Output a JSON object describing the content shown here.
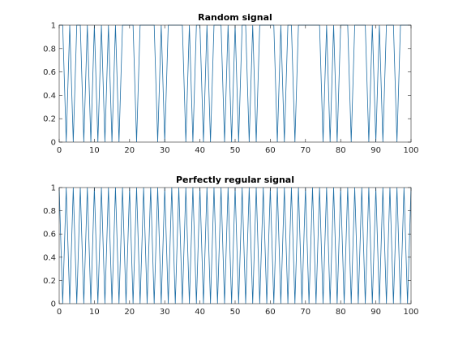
{
  "figure": {
    "background": "#ffffff",
    "axis_color": "#262626",
    "series_color": "#1f6fa6"
  },
  "chart_data": [
    {
      "type": "line",
      "title": "Random signal",
      "xlabel": "",
      "ylabel": "",
      "xlim": [
        0,
        100
      ],
      "ylim": [
        0,
        1
      ],
      "xticks": [
        0,
        10,
        20,
        30,
        40,
        50,
        60,
        70,
        80,
        90,
        100
      ],
      "yticks": [
        0,
        0.2,
        0.4,
        0.6,
        0.8,
        1
      ],
      "grid": false,
      "series": [
        {
          "color": "#1f6fa6",
          "x": [
            0,
            1,
            2,
            3,
            4,
            5,
            6,
            7,
            8,
            9,
            10,
            11,
            12,
            13,
            14,
            15,
            16,
            17,
            18,
            19,
            20,
            21,
            22,
            23,
            24,
            25,
            26,
            27,
            28,
            29,
            30,
            31,
            32,
            33,
            34,
            35,
            36,
            37,
            38,
            39,
            40,
            41,
            42,
            43,
            44,
            45,
            46,
            47,
            48,
            49,
            50,
            51,
            52,
            53,
            54,
            55,
            56,
            57,
            58,
            59,
            60,
            61,
            62,
            63,
            64,
            65,
            66,
            67,
            68,
            69,
            70,
            71,
            72,
            73,
            74,
            75,
            76,
            77,
            78,
            79,
            80,
            81,
            82,
            83,
            84,
            85,
            86,
            87,
            88,
            89,
            90,
            91,
            92,
            93,
            94,
            95,
            96,
            97,
            98,
            99,
            100
          ],
          "y": [
            1,
            1,
            0,
            1,
            0,
            1,
            1,
            0,
            1,
            0,
            1,
            0,
            1,
            0,
            1,
            0,
            1,
            0,
            1,
            1,
            1,
            1,
            0,
            1,
            1,
            1,
            1,
            1,
            0,
            1,
            0,
            1,
            1,
            1,
            1,
            1,
            0,
            1,
            0,
            1,
            1,
            0,
            1,
            0,
            1,
            1,
            1,
            0,
            1,
            0,
            1,
            0,
            1,
            1,
            0,
            1,
            0,
            1,
            1,
            1,
            1,
            1,
            0,
            1,
            0,
            1,
            1,
            0,
            1,
            1,
            1,
            1,
            1,
            1,
            1,
            0,
            1,
            0,
            1,
            0,
            1,
            1,
            1,
            0,
            1,
            1,
            1,
            1,
            0,
            1,
            0,
            1,
            0,
            1,
            1,
            1,
            0,
            1,
            1,
            1,
            1
          ]
        }
      ]
    },
    {
      "type": "line",
      "title": "Perfectly regular signal",
      "xlabel": "",
      "ylabel": "",
      "xlim": [
        0,
        100
      ],
      "ylim": [
        0,
        1
      ],
      "xticks": [
        0,
        10,
        20,
        30,
        40,
        50,
        60,
        70,
        80,
        90,
        100
      ],
      "yticks": [
        0,
        0.2,
        0.4,
        0.6,
        0.8,
        1
      ],
      "grid": false,
      "series": [
        {
          "color": "#1f6fa6",
          "x": [
            0,
            1,
            2,
            3,
            4,
            5,
            6,
            7,
            8,
            9,
            10,
            11,
            12,
            13,
            14,
            15,
            16,
            17,
            18,
            19,
            20,
            21,
            22,
            23,
            24,
            25,
            26,
            27,
            28,
            29,
            30,
            31,
            32,
            33,
            34,
            35,
            36,
            37,
            38,
            39,
            40,
            41,
            42,
            43,
            44,
            45,
            46,
            47,
            48,
            49,
            50,
            51,
            52,
            53,
            54,
            55,
            56,
            57,
            58,
            59,
            60,
            61,
            62,
            63,
            64,
            65,
            66,
            67,
            68,
            69,
            70,
            71,
            72,
            73,
            74,
            75,
            76,
            77,
            78,
            79,
            80,
            81,
            82,
            83,
            84,
            85,
            86,
            87,
            88,
            89,
            90,
            91,
            92,
            93,
            94,
            95,
            96,
            97,
            98,
            99,
            100
          ],
          "y": [
            1,
            0,
            1,
            0,
            1,
            0,
            1,
            0,
            1,
            0,
            1,
            0,
            1,
            0,
            1,
            0,
            1,
            0,
            1,
            0,
            1,
            0,
            1,
            0,
            1,
            0,
            1,
            0,
            1,
            0,
            1,
            0,
            1,
            0,
            1,
            0,
            1,
            0,
            1,
            0,
            1,
            0,
            1,
            0,
            1,
            0,
            1,
            0,
            1,
            0,
            1,
            0,
            1,
            0,
            1,
            0,
            1,
            0,
            1,
            0,
            1,
            0,
            1,
            0,
            1,
            0,
            1,
            0,
            1,
            0,
            1,
            0,
            1,
            0,
            1,
            0,
            1,
            0,
            1,
            0,
            1,
            0,
            1,
            0,
            1,
            0,
            1,
            0,
            1,
            0,
            1,
            0,
            1,
            0,
            1,
            0,
            1,
            0,
            1,
            0,
            1
          ]
        }
      ]
    }
  ]
}
